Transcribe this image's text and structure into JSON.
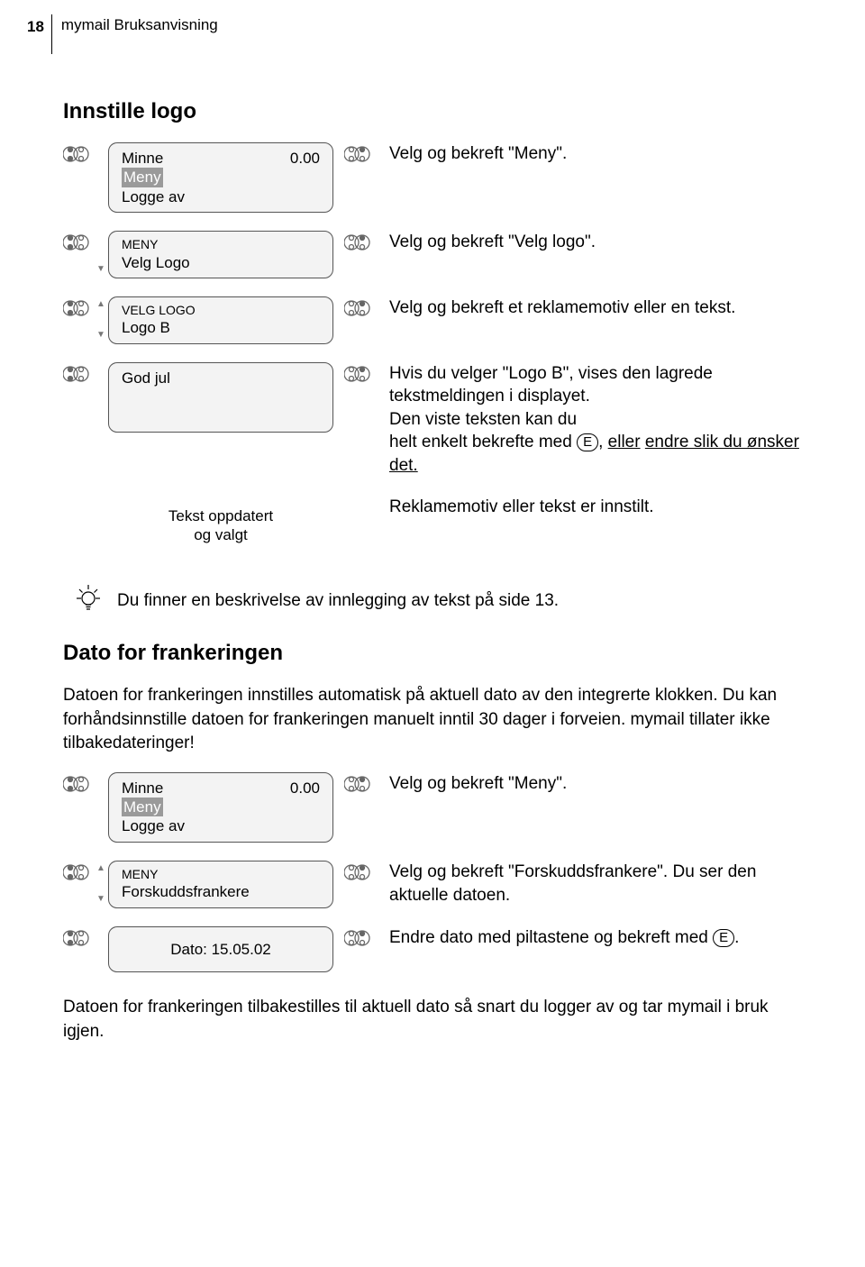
{
  "header": {
    "page_number": "18",
    "title": "mymail Bruksanvisning"
  },
  "section1": {
    "heading": "Innstille logo",
    "rows": [
      {
        "display": {
          "type": "three-line",
          "line1_left": "Minne",
          "line1_right": "0.00",
          "line2_highlight": "Meny",
          "line3": "Logge av"
        },
        "desc": "Velg og bekreft \"Meny\"."
      },
      {
        "display": {
          "type": "two-line-arrow-down",
          "line1_small": "MENY",
          "line2": "Velg Logo"
        },
        "desc": "Velg og bekreft \"Velg logo\"."
      },
      {
        "display": {
          "type": "two-line-arrow-both",
          "line1_small": "VELG LOGO",
          "line2": "Logo B"
        },
        "desc": "Velg og bekreft et reklamemotiv eller en tekst."
      },
      {
        "display": {
          "type": "one-line-tall",
          "line1": "God jul"
        },
        "desc_html": "Hvis du velger \"Logo B\", vises den lagrede tekstmeldingen i displayet.<br>Den viste teksten kan du<br>helt enkelt bekrefte med <span class=\"key-e\">E</span>, <span class=\"underline\">eller</span> <span class=\"underline\">endre slik du ønsker det.</span>"
      },
      {
        "display": {
          "type": "centered-noborder",
          "line1": "Tekst oppdatert",
          "line2": "og valgt"
        },
        "desc": "Reklamemotiv eller tekst er innstilt.",
        "no_icons": true
      }
    ]
  },
  "tip": "Du finner en beskrivelse av innlegging av tekst på side 13.",
  "section2": {
    "heading": "Dato for frankeringen",
    "intro": "Datoen for frankeringen innstilles automatisk på aktuell dato av den integrerte klokken. Du kan forhåndsinnstille datoen for frankeringen manuelt inntil 30 dager i forveien. mymail tillater ikke tilbakedateringer!",
    "rows": [
      {
        "display": {
          "type": "three-line",
          "line1_left": "Minne",
          "line1_right": "0.00",
          "line2_highlight": "Meny",
          "line3": "Logge av"
        },
        "desc": "Velg og bekreft \"Meny\"."
      },
      {
        "display": {
          "type": "two-line-arrow-both",
          "line1_small": "MENY",
          "line2": "Forskuddsfrankere"
        },
        "desc": "Velg og bekreft \"Forskuddsfrankere\". Du ser den aktuelle datoen."
      },
      {
        "display": {
          "type": "one-line-centered",
          "line1": "Dato: 15.05.02"
        },
        "desc_html": "Endre dato med piltastene og bekreft med <span class=\"key-e\">E</span>."
      }
    ],
    "outro": "Datoen for frankeringen tilbakestilles til aktuell dato så snart du logger av og tar mymail i bruk igjen."
  }
}
